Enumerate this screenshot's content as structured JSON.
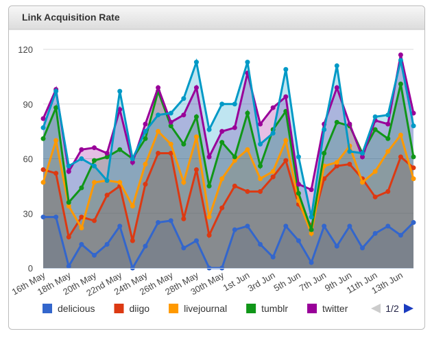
{
  "chart_data": {
    "type": "area",
    "title": "Link Acquisition Rate",
    "categories": [
      "16th May",
      null,
      "18th May",
      null,
      "20th May",
      null,
      "22nd May",
      null,
      "24th May",
      null,
      "26th May",
      null,
      "28th May",
      null,
      "30th May",
      null,
      "1st Jun",
      null,
      "3rd Jun",
      null,
      "5th Jun",
      null,
      "7th Jun",
      null,
      "9th Jun",
      null,
      "11th Jun",
      null,
      "13th Jun",
      null
    ],
    "series": [
      {
        "name": "delicious",
        "color": "#3366cc",
        "values": [
          28,
          28,
          1,
          13,
          7,
          13,
          23,
          0,
          12,
          25,
          26,
          11,
          15,
          0,
          0,
          21,
          23,
          13,
          6,
          23,
          15,
          3,
          23,
          12,
          23,
          11,
          19,
          23,
          18,
          25
        ]
      },
      {
        "name": "diigo",
        "color": "#dc3912",
        "values": [
          54,
          52,
          17,
          28,
          26,
          40,
          45,
          15,
          46,
          63,
          63,
          27,
          54,
          18,
          33,
          45,
          42,
          42,
          50,
          59,
          35,
          23,
          49,
          56,
          57,
          49,
          39,
          42,
          61,
          55
        ]
      },
      {
        "name": "livejournal",
        "color": "#ff9900",
        "values": [
          47,
          70,
          34,
          22,
          47,
          48,
          47,
          34,
          57,
          75,
          68,
          47,
          72,
          28,
          49,
          59,
          65,
          49,
          53,
          70,
          37,
          19,
          56,
          58,
          67,
          47,
          53,
          64,
          73,
          49
        ]
      },
      {
        "name": "tumblr",
        "color": "#109618",
        "values": [
          71,
          88,
          36,
          44,
          59,
          61,
          65,
          60,
          71,
          97,
          78,
          68,
          83,
          45,
          69,
          61,
          85,
          56,
          76,
          86,
          41,
          21,
          63,
          80,
          78,
          63,
          76,
          71,
          101,
          61
        ]
      },
      {
        "name": "twitter",
        "color": "#990099",
        "values": [
          82,
          98,
          53,
          65,
          66,
          63,
          87,
          58,
          79,
          99,
          80,
          84,
          99,
          61,
          75,
          77,
          107,
          79,
          88,
          94,
          46,
          43,
          79,
          99,
          79,
          61,
          81,
          79,
          117,
          85
        ]
      },
      {
        "color": "#0099c6",
        "values": [
          77,
          97,
          56,
          60,
          56,
          48,
          97,
          60,
          75,
          84,
          85,
          93,
          113,
          76,
          90,
          90,
          113,
          68,
          74,
          109,
          61,
          28,
          76,
          111,
          64,
          63,
          83,
          84,
          114,
          78
        ]
      }
    ],
    "ylim": [
      0,
      120
    ],
    "yticks": [
      0,
      30,
      60,
      90,
      120
    ],
    "grid": true,
    "legend_page": "1/2"
  }
}
